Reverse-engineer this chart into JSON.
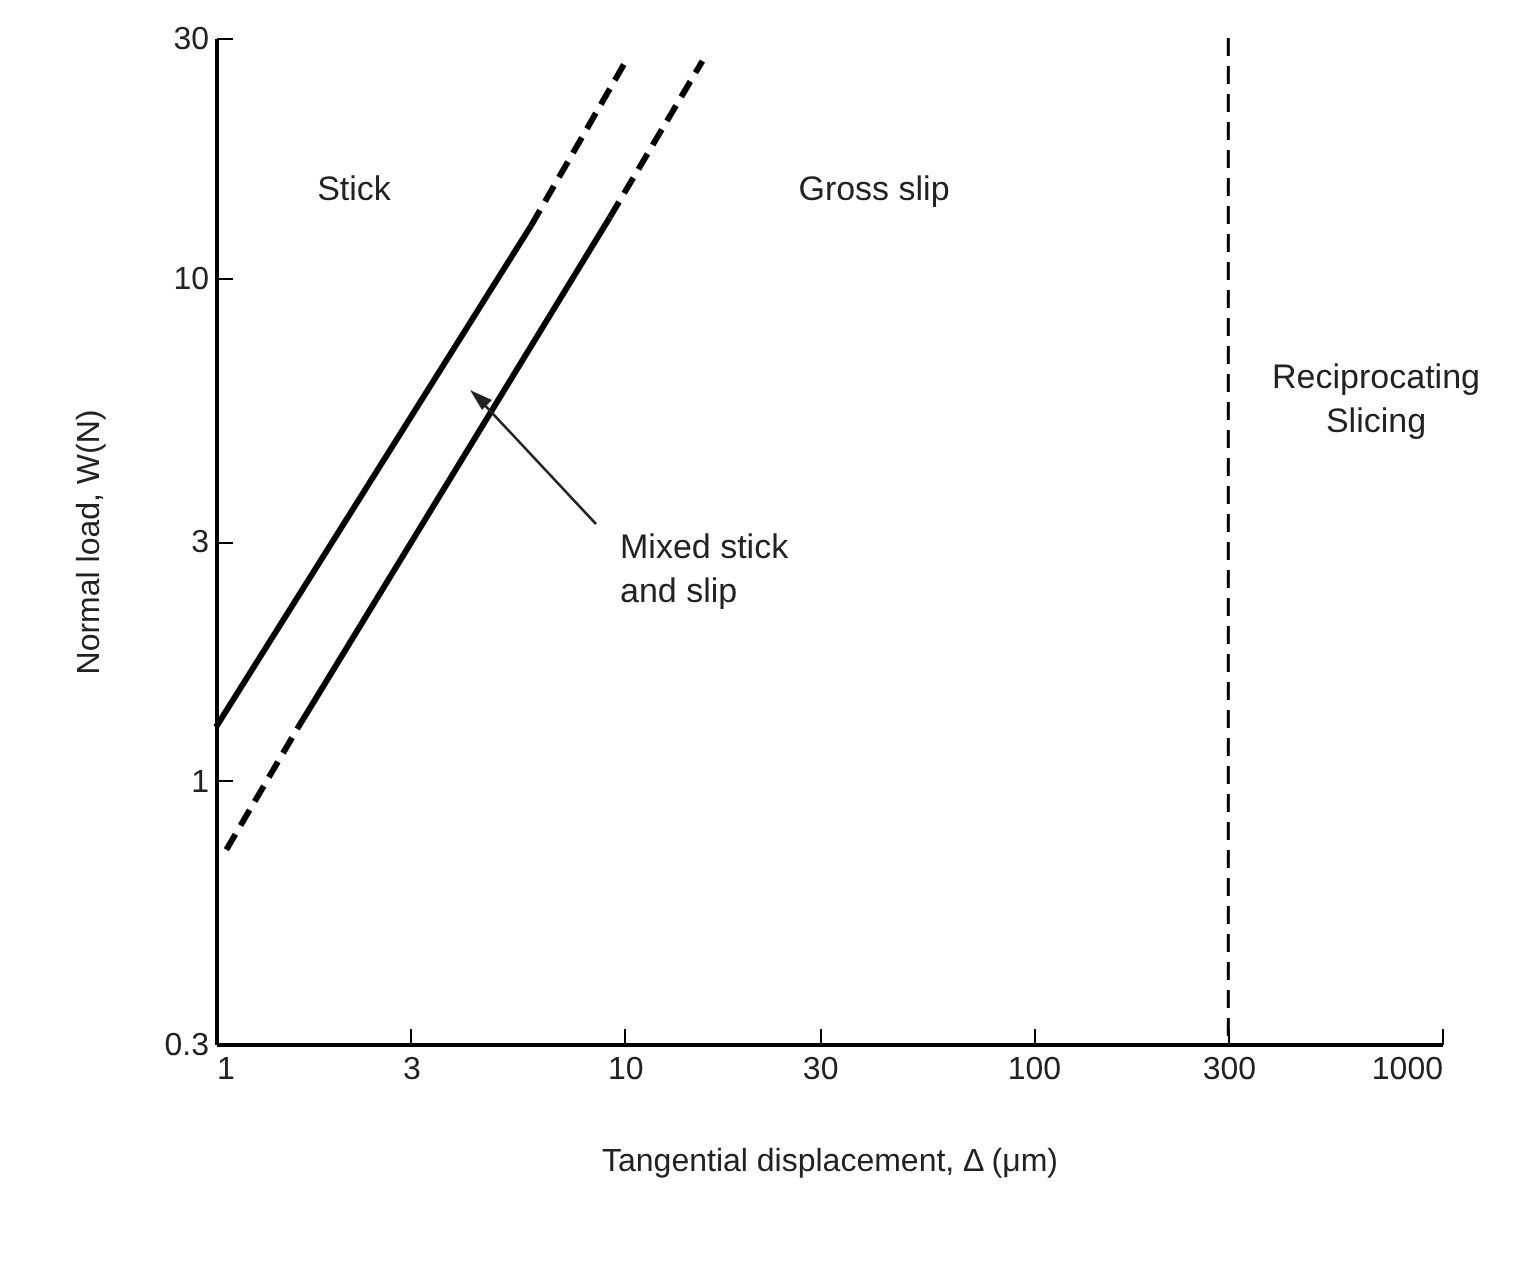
{
  "chart_data": {
    "type": "line",
    "xlabel": "Tangential displacement, Δ (μm)",
    "ylabel": "Normal load, W(N)",
    "log": "xy",
    "xlim": [
      1,
      1000
    ],
    "xticks": [
      1,
      3,
      10,
      30,
      100,
      300,
      1000
    ],
    "ylim": [
      0.3,
      30
    ],
    "yticks": [
      0.3,
      1,
      3,
      10,
      30
    ],
    "grid": false,
    "marker": "none",
    "series": [
      {
        "color": "#000000",
        "line_style": "solid",
        "x": [
          1,
          5.9
        ],
        "values": [
          1.28,
          12.7
        ]
      },
      {
        "color": "#000000",
        "line_style": "dashed",
        "x": [
          5.9,
          10.2
        ],
        "values": [
          12.7,
          27.5
        ]
      },
      {
        "color": "#000000",
        "line_style": "dashed",
        "x": [
          1.06,
          1.59
        ],
        "values": [
          0.73,
          1.28
        ]
      },
      {
        "color": "#000000",
        "line_style": "solid",
        "x": [
          1.59,
          9.2
        ],
        "values": [
          1.28,
          13.2
        ]
      },
      {
        "color": "#000000",
        "line_style": "dashed",
        "x": [
          9.2,
          15.5
        ],
        "values": [
          13.2,
          27
        ]
      }
    ],
    "ref_lines": [
      {
        "axis": "x",
        "value": 300,
        "color": "#000000",
        "line_style": "dashed"
      }
    ],
    "annotations": [
      "Stick",
      "Gross slip",
      "Reciprocating\nSlicing",
      "Mixed stick\nand slip"
    ]
  }
}
